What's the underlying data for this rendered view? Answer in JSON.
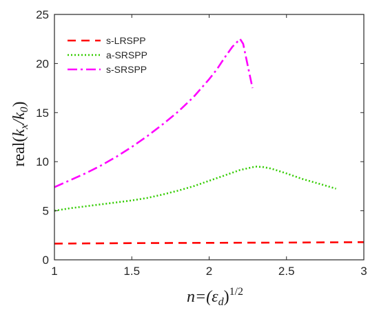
{
  "chart_data": {
    "type": "line",
    "title": "",
    "xlabel": {
      "prefix": "n=(",
      "symbol": "ε",
      "sub": "d",
      "suffix": ")",
      "sup": "1/2"
    },
    "ylabel": {
      "prefix": "real(",
      "num": "k",
      "num_sub": "x",
      "slash": "/",
      "den": "k",
      "den_sub": "0",
      "suffix": ")"
    },
    "xlim": [
      1,
      3
    ],
    "ylim": [
      0,
      25
    ],
    "xticks": [
      1,
      1.5,
      2,
      2.5,
      3
    ],
    "xtick_labels": [
      "1",
      "1.5",
      "2",
      "2.5",
      "3"
    ],
    "yticks": [
      0,
      5,
      10,
      15,
      20,
      25
    ],
    "ytick_labels": [
      "0",
      "5",
      "10",
      "15",
      "20",
      "25"
    ],
    "grid": false,
    "legend_position": "top-left",
    "series": [
      {
        "name": "s-LRSPP",
        "color": "#ff0000",
        "style": "dashed",
        "x": [
          1.0,
          1.5,
          2.0,
          2.5,
          3.0
        ],
        "y": [
          1.65,
          1.7,
          1.73,
          1.76,
          1.8
        ]
      },
      {
        "name": "a-SRSPP",
        "color": "#33cc00",
        "style": "dotted",
        "x": [
          1.0,
          1.1,
          1.2,
          1.3,
          1.4,
          1.5,
          1.6,
          1.7,
          1.8,
          1.9,
          2.0,
          2.1,
          2.2,
          2.3,
          2.35,
          2.4,
          2.5,
          2.6,
          2.7,
          2.82
        ],
        "y": [
          5.0,
          5.25,
          5.45,
          5.65,
          5.85,
          6.05,
          6.3,
          6.65,
          7.05,
          7.5,
          8.05,
          8.6,
          9.15,
          9.5,
          9.45,
          9.3,
          8.8,
          8.25,
          7.8,
          7.25
        ]
      },
      {
        "name": "s-SRSPP",
        "color": "#ff00ff",
        "style": "dashdot",
        "x": [
          1.0,
          1.1,
          1.2,
          1.3,
          1.4,
          1.5,
          1.6,
          1.7,
          1.8,
          1.9,
          2.0,
          2.05,
          2.1,
          2.15,
          2.2,
          2.22,
          2.24,
          2.26,
          2.28
        ],
        "y": [
          7.4,
          8.1,
          8.8,
          9.6,
          10.5,
          11.5,
          12.6,
          13.8,
          15.1,
          16.6,
          18.4,
          19.4,
          20.6,
          21.7,
          22.5,
          22.0,
          20.5,
          19.0,
          17.5
        ]
      }
    ]
  }
}
